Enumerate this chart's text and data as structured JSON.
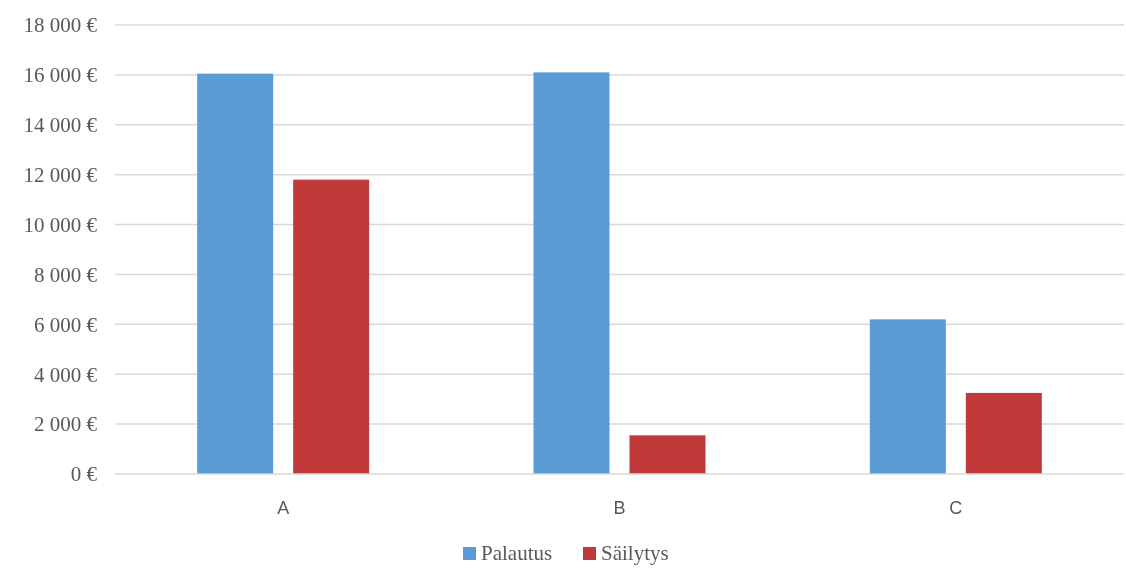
{
  "chart_data": {
    "type": "bar",
    "categories": [
      "A",
      "B",
      "C"
    ],
    "series": [
      {
        "name": "Palautus",
        "color": "#5b9bd5",
        "values": [
          16050,
          16100,
          6200
        ]
      },
      {
        "name": "Säilytys",
        "color": "#c0393b",
        "values": [
          11800,
          1550,
          3250
        ]
      }
    ],
    "ylim": [
      0,
      18000
    ],
    "yticks": [
      {
        "value": 0,
        "label": "0 €"
      },
      {
        "value": 2000,
        "label": "2 000 €"
      },
      {
        "value": 4000,
        "label": "4 000 €"
      },
      {
        "value": 6000,
        "label": "6 000 €"
      },
      {
        "value": 8000,
        "label": "8 000 €"
      },
      {
        "value": 10000,
        "label": "10 000 €"
      },
      {
        "value": 12000,
        "label": "12 000 €"
      },
      {
        "value": 14000,
        "label": "14 000 €"
      },
      {
        "value": 16000,
        "label": "16 000 €"
      },
      {
        "value": 18000,
        "label": "18 000 €"
      }
    ],
    "grid": "y",
    "legend": "bottom"
  }
}
